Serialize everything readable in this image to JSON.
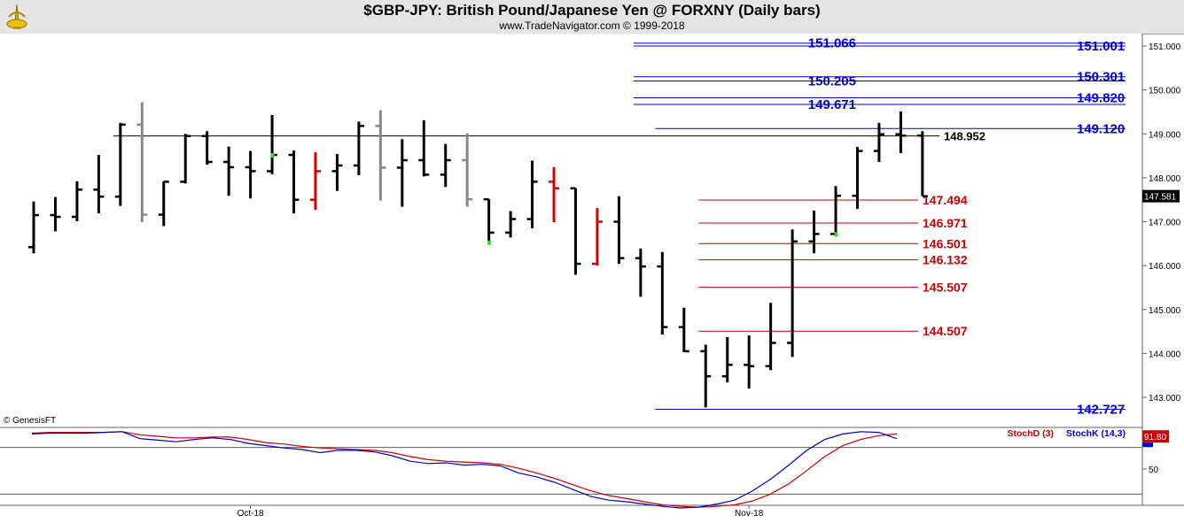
{
  "header": {
    "title": "$GBP-JPY:  British Pound/Japanese Yen @ FORXNY  (Daily bars)",
    "subtitle": "www.TradeNavigator.com © 1999-2018",
    "logo_icon": "trumpet-logo-icon"
  },
  "copyright": "© GenesisFT",
  "colors": {
    "up_bar": "#000000",
    "down_bar": "#d40000",
    "neutral_bar": "#888888",
    "signal_dot": "#33dd33",
    "blue_level": "#0000cc",
    "red_level": "#cc0000",
    "stochD": "#cc0000",
    "stochK": "#0000cc",
    "price_tag_bg": "#000000",
    "stoch_tag_bg": "#cc0000"
  },
  "chart_data": [
    {
      "type": "ohlc",
      "ylim": [
        142.5,
        151.5
      ],
      "y_ticks": [
        "151.000",
        "150.000",
        "149.000",
        "148.000",
        "147.000",
        "146.000",
        "145.000",
        "144.000",
        "143.000"
      ],
      "x_tick_labels": [
        {
          "label": "Oct-18",
          "index": 10
        },
        {
          "label": "Nov-18",
          "index": 33
        }
      ],
      "last_price": "147.581",
      "bars": [
        {
          "o": 146.42,
          "h": 147.46,
          "l": 146.28,
          "c": 147.15,
          "col": "up"
        },
        {
          "o": 147.15,
          "h": 147.56,
          "l": 146.78,
          "c": 147.11,
          "col": "up"
        },
        {
          "o": 147.11,
          "h": 147.92,
          "l": 147.01,
          "c": 147.73,
          "col": "up"
        },
        {
          "o": 147.73,
          "h": 148.52,
          "l": 147.19,
          "c": 147.57,
          "col": "up"
        },
        {
          "o": 147.57,
          "h": 149.25,
          "l": 147.36,
          "c": 149.21,
          "col": "up"
        },
        {
          "o": 149.21,
          "h": 149.72,
          "l": 146.99,
          "c": 147.16,
          "col": "neutral"
        },
        {
          "o": 147.16,
          "h": 147.92,
          "l": 146.9,
          "c": 147.91,
          "col": "up"
        },
        {
          "o": 147.91,
          "h": 149.0,
          "l": 147.87,
          "c": 148.95,
          "col": "up"
        },
        {
          "o": 148.95,
          "h": 149.06,
          "l": 148.3,
          "c": 148.36,
          "col": "up"
        },
        {
          "o": 148.36,
          "h": 148.71,
          "l": 147.59,
          "c": 148.24,
          "col": "up"
        },
        {
          "o": 148.24,
          "h": 148.61,
          "l": 147.53,
          "c": 148.15,
          "col": "up"
        },
        {
          "o": 148.15,
          "h": 149.43,
          "l": 148.08,
          "c": 148.52,
          "col": "up",
          "signal": true
        },
        {
          "o": 148.52,
          "h": 148.62,
          "l": 147.19,
          "c": 147.5,
          "col": "up"
        },
        {
          "o": 147.5,
          "h": 148.58,
          "l": 147.27,
          "c": 148.15,
          "col": "down"
        },
        {
          "o": 148.15,
          "h": 148.54,
          "l": 147.7,
          "c": 148.28,
          "col": "up"
        },
        {
          "o": 148.28,
          "h": 149.28,
          "l": 148.06,
          "c": 149.18,
          "col": "up"
        },
        {
          "o": 149.18,
          "h": 149.54,
          "l": 147.48,
          "c": 148.23,
          "col": "neutral"
        },
        {
          "o": 148.23,
          "h": 148.88,
          "l": 147.34,
          "c": 148.4,
          "col": "up"
        },
        {
          "o": 148.4,
          "h": 149.31,
          "l": 148.03,
          "c": 148.07,
          "col": "up"
        },
        {
          "o": 148.07,
          "h": 148.77,
          "l": 147.79,
          "c": 148.4,
          "col": "up"
        },
        {
          "o": 148.4,
          "h": 149.01,
          "l": 147.34,
          "c": 147.51,
          "col": "neutral"
        },
        {
          "o": 147.51,
          "h": 147.51,
          "l": 146.53,
          "c": 146.75,
          "col": "up",
          "signal": true
        },
        {
          "o": 146.75,
          "h": 147.24,
          "l": 146.64,
          "c": 147.06,
          "col": "up"
        },
        {
          "o": 147.06,
          "h": 148.39,
          "l": 146.85,
          "c": 147.91,
          "col": "up"
        },
        {
          "o": 147.91,
          "h": 148.24,
          "l": 146.99,
          "c": 147.76,
          "col": "down"
        },
        {
          "o": 147.76,
          "h": 147.76,
          "l": 145.79,
          "c": 146.04,
          "col": "up"
        },
        {
          "o": 146.04,
          "h": 147.31,
          "l": 146.0,
          "c": 147.0,
          "col": "down"
        },
        {
          "o": 147.0,
          "h": 147.58,
          "l": 146.04,
          "c": 146.17,
          "col": "up"
        },
        {
          "o": 146.17,
          "h": 146.39,
          "l": 145.29,
          "c": 145.98,
          "col": "up"
        },
        {
          "o": 145.98,
          "h": 146.31,
          "l": 144.43,
          "c": 144.6,
          "col": "up"
        },
        {
          "o": 144.6,
          "h": 145.04,
          "l": 144.03,
          "c": 144.05,
          "col": "up"
        },
        {
          "o": 144.05,
          "h": 144.2,
          "l": 142.77,
          "c": 143.48,
          "col": "up"
        },
        {
          "o": 143.48,
          "h": 144.37,
          "l": 143.34,
          "c": 143.74,
          "col": "up"
        },
        {
          "o": 143.74,
          "h": 144.41,
          "l": 143.2,
          "c": 143.71,
          "col": "up"
        },
        {
          "o": 143.71,
          "h": 145.15,
          "l": 143.62,
          "c": 144.24,
          "col": "up"
        },
        {
          "o": 144.24,
          "h": 146.82,
          "l": 143.92,
          "c": 146.55,
          "col": "up"
        },
        {
          "o": 146.55,
          "h": 147.25,
          "l": 146.28,
          "c": 146.72,
          "col": "up"
        },
        {
          "o": 146.72,
          "h": 147.81,
          "l": 146.72,
          "c": 147.59,
          "col": "up",
          "signal": true
        },
        {
          "o": 147.59,
          "h": 148.7,
          "l": 147.29,
          "c": 148.61,
          "col": "up"
        },
        {
          "o": 148.61,
          "h": 149.25,
          "l": 148.36,
          "c": 148.99,
          "col": "up"
        },
        {
          "o": 148.99,
          "h": 149.51,
          "l": 148.56,
          "c": 148.96,
          "col": "up"
        },
        {
          "o": 148.96,
          "h": 149.06,
          "l": 147.58,
          "c": 147.58,
          "col": "up"
        }
      ],
      "levels": [
        {
          "value": 151.066,
          "label": "151.066",
          "color": "blue",
          "label_side": "left",
          "x_from_index": 28
        },
        {
          "value": 151.001,
          "label": "151.001",
          "color": "blue",
          "label_side": "right",
          "x_from_index": 28
        },
        {
          "value": 150.301,
          "label": "150.301",
          "color": "blue",
          "label_side": "right",
          "x_from_index": 28
        },
        {
          "value": 150.205,
          "label": "150.205",
          "color": "blue",
          "label_side": "left",
          "x_from_index": 28
        },
        {
          "value": 149.82,
          "label": "149.820",
          "color": "blue",
          "label_side": "right",
          "x_from_index": 28
        },
        {
          "value": 149.671,
          "label": "149.671",
          "color": "blue",
          "label_side": "left",
          "x_from_index": 28
        },
        {
          "value": 149.12,
          "label": "149.120",
          "color": "blue",
          "label_side": "right",
          "x_from_index": 29
        },
        {
          "value": 148.952,
          "label": "148.952",
          "color": "black",
          "label_side": "mid",
          "x_from_index": 4
        },
        {
          "value": 147.494,
          "label": "147.494",
          "color": "red",
          "label_side": "mid",
          "x_from_index": 31
        },
        {
          "value": 146.971,
          "label": "146.971",
          "color": "red",
          "label_side": "mid",
          "x_from_index": 31
        },
        {
          "value": 146.501,
          "label": "146.501",
          "color": "red",
          "label_side": "mid",
          "x_from_index": 31
        },
        {
          "value": 146.132,
          "label": "146.132",
          "color": "red",
          "label_side": "mid",
          "x_from_index": 31
        },
        {
          "value": 145.507,
          "label": "145.507",
          "color": "red",
          "label_side": "mid",
          "x_from_index": 31
        },
        {
          "value": 144.507,
          "label": "144.507",
          "color": "red",
          "label_side": "mid",
          "x_from_index": 31
        },
        {
          "value": 142.727,
          "label": "142.727",
          "color": "blue",
          "label_side": "right",
          "x_from_index": 29
        }
      ]
    },
    {
      "type": "line",
      "ylim": [
        0,
        100
      ],
      "y_ticks": [
        "50"
      ],
      "ref_lines": [
        80,
        20
      ],
      "last_value": "91.80",
      "series": [
        {
          "name": "StochD (3)",
          "values": [
            96,
            97,
            97,
            97,
            97,
            98,
            94,
            92,
            90,
            90,
            91,
            91,
            88,
            84,
            82,
            79,
            77,
            76,
            75,
            74,
            71,
            66,
            62,
            60,
            59,
            58,
            56,
            51,
            45,
            38,
            30,
            22,
            16,
            12,
            8,
            4,
            2,
            1,
            2,
            4,
            9,
            18,
            31,
            48,
            66,
            80,
            88,
            93,
            95
          ]
        },
        {
          "name": "StochK (14,3)",
          "values": [
            95,
            96,
            96,
            96,
            97,
            98,
            89,
            87,
            85,
            88,
            90,
            88,
            83,
            80,
            77,
            75,
            71,
            74,
            74,
            72,
            67,
            60,
            57,
            58,
            55,
            56,
            54,
            45,
            40,
            33,
            24,
            15,
            10,
            8,
            5,
            2,
            0,
            1,
            5,
            10,
            22,
            37,
            55,
            74,
            88,
            95,
            98,
            97,
            89
          ]
        }
      ]
    }
  ]
}
